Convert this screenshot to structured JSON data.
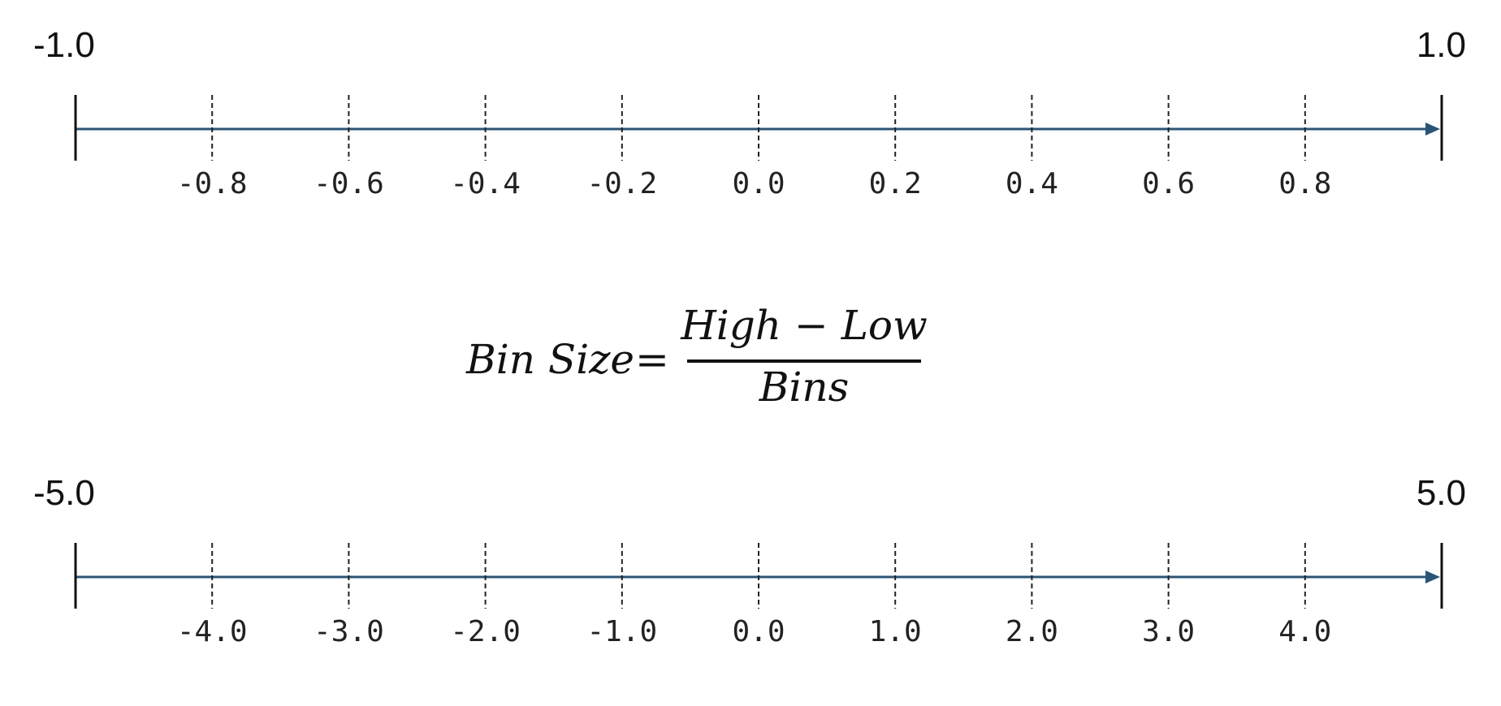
{
  "colors": {
    "axis": "#2a5577",
    "tick": "#111111",
    "divider": "#222222"
  },
  "lines": [
    {
      "low_label": "-1.0",
      "high_label": "1.0",
      "low": -1.0,
      "high": 1.0,
      "bins": 10,
      "bin_labels": [
        "-0.8",
        "-0.6",
        "-0.4",
        "-0.2",
        "0.0",
        "0.2",
        "0.4",
        "0.6",
        "0.8"
      ]
    },
    {
      "low_label": "-5.0",
      "high_label": "5.0",
      "low": -5.0,
      "high": 5.0,
      "bins": 10,
      "bin_labels": [
        "-4.0",
        "-3.0",
        "-2.0",
        "-1.0",
        "0.0",
        "1.0",
        "2.0",
        "3.0",
        "4.0"
      ]
    }
  ],
  "formula": {
    "lhs": "Bin Size",
    "equals": "=",
    "numerator": "High − Low",
    "denominator": "Bins"
  }
}
